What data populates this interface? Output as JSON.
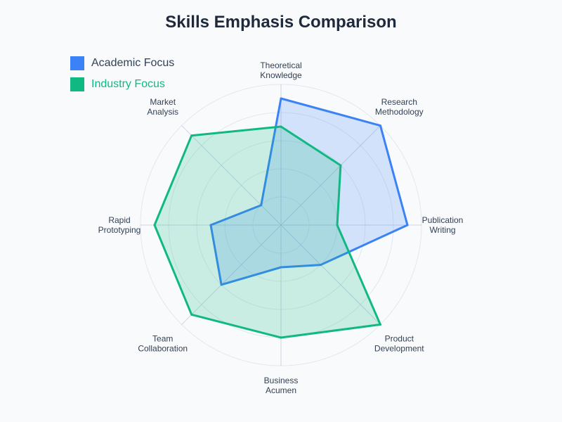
{
  "chart_data": {
    "type": "radar",
    "title": "Skills Emphasis Comparison",
    "categories": [
      [
        "Theoretical",
        "Knowledge"
      ],
      [
        "Research",
        "Methodology"
      ],
      [
        "Publication",
        "Writing"
      ],
      [
        "Product",
        "Development"
      ],
      [
        "Business",
        "Acumen"
      ],
      [
        "Team",
        "Collaboration"
      ],
      [
        "Rapid",
        "Prototyping"
      ],
      [
        "Market",
        "Analysis"
      ]
    ],
    "rlim": [
      0,
      10
    ],
    "grid_levels": 5,
    "grid": true,
    "legend_position": "top-left",
    "series": [
      {
        "name": "Academic Focus",
        "values": [
          9,
          10,
          9,
          4,
          3,
          6,
          5,
          2
        ],
        "color": "#3b82f6",
        "fill": "rgba(59, 130, 246, 0.2)"
      },
      {
        "name": "Industry Focus",
        "values": [
          7,
          6,
          4,
          10,
          8,
          9,
          9,
          9
        ],
        "color": "#10b981",
        "fill": "rgba(16, 185, 129, 0.2)"
      }
    ]
  }
}
